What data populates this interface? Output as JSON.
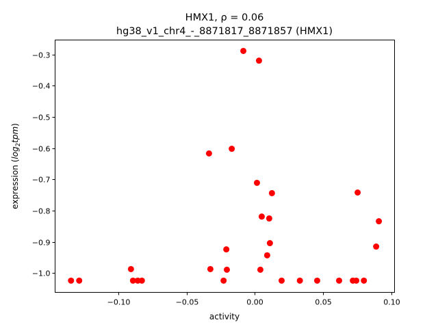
{
  "chart_data": {
    "type": "scatter",
    "title_line1": "HMX1, ρ = 0.06",
    "title_line2": "hg38_v1_chr4_-_8871817_8871857 (HMX1)",
    "xlabel": "activity",
    "ylabel_prefix": "expression (",
    "ylabel_math": "log",
    "ylabel_sub": "2",
    "ylabel_math2": "tpm",
    "ylabel_suffix": ")",
    "xlim": [
      -0.1467,
      0.1025
    ],
    "ylim": [
      -1.0615,
      -0.254
    ],
    "xticks": [
      -0.1,
      -0.05,
      0.0,
      0.05,
      0.1
    ],
    "xtick_labels": [
      "−0.10",
      "−0.05",
      "0.00",
      "0.05",
      "0.10"
    ],
    "yticks": [
      -1.0,
      -0.9,
      -0.8,
      -0.7,
      -0.6,
      -0.5,
      -0.4,
      -0.3
    ],
    "ytick_labels": [
      "−1.0",
      "−0.9",
      "−0.8",
      "−0.7",
      "−0.6",
      "−0.5",
      "−0.4",
      "−0.3"
    ],
    "grid": false,
    "marker_color": "#ff0000",
    "points": [
      [
        -0.135,
        -1.024
      ],
      [
        -0.129,
        -1.024
      ],
      [
        -0.091,
        -0.987
      ],
      [
        -0.0895,
        -1.024
      ],
      [
        -0.086,
        -1.024
      ],
      [
        -0.083,
        -1.024
      ],
      [
        -0.0337,
        -0.617
      ],
      [
        -0.0327,
        -0.987
      ],
      [
        -0.023,
        -1.024
      ],
      [
        -0.021,
        -0.924
      ],
      [
        -0.0206,
        -0.989
      ],
      [
        -0.017,
        -0.602
      ],
      [
        -0.0085,
        -0.289
      ],
      [
        0.0015,
        -0.711
      ],
      [
        0.003,
        -0.32
      ],
      [
        0.004,
        -0.989
      ],
      [
        0.005,
        -0.819
      ],
      [
        0.009,
        -0.943
      ],
      [
        0.0105,
        -0.825
      ],
      [
        0.011,
        -0.904
      ],
      [
        0.0125,
        -0.744
      ],
      [
        0.0196,
        -1.024
      ],
      [
        0.033,
        -1.024
      ],
      [
        0.0457,
        -1.024
      ],
      [
        0.0618,
        -1.024
      ],
      [
        0.0719,
        -1.024
      ],
      [
        0.0744,
        -1.024
      ],
      [
        0.0754,
        -0.742
      ],
      [
        0.08,
        -1.024
      ],
      [
        0.089,
        -0.915
      ],
      [
        0.091,
        -0.834
      ]
    ]
  }
}
